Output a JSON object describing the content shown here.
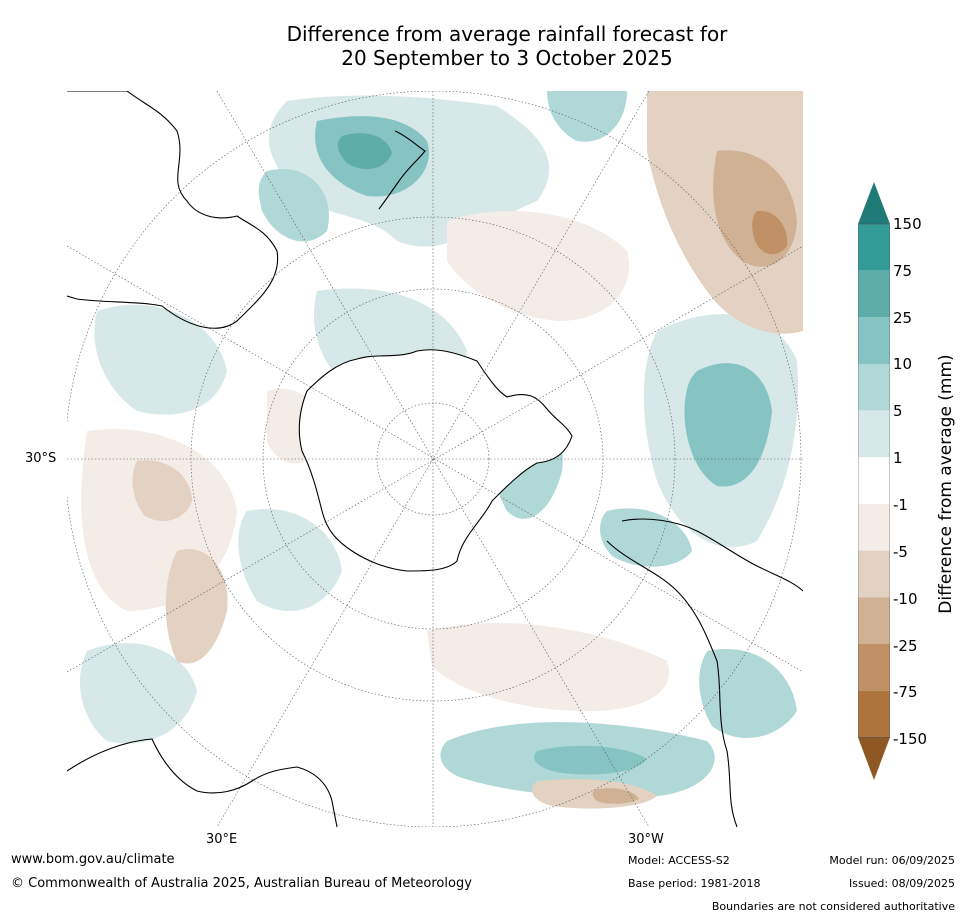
{
  "title_line1": "Difference from average rainfall forecast for",
  "title_line2": "20 September to 3 October 2025",
  "map": {
    "projection": "south-polar-stereographic",
    "lat_label": "30°S",
    "lon_labels": {
      "east": "30°E",
      "west": "30°W"
    },
    "legend_position": "right"
  },
  "colorbar": {
    "label": "Difference from average (mm)",
    "ticks": [
      "150",
      "75",
      "25",
      "10",
      "5",
      "1",
      "-1",
      "-5",
      "-10",
      "-25",
      "-75",
      "-150"
    ],
    "colors": {
      "above_150": "#1f7a78",
      "75_150": "#339c98",
      "25_75": "#5eadab",
      "10_25": "#85c4c2",
      "5_10": "#b0d8d7",
      "1_5": "#d6e9e8",
      "neutral": "#ffffff",
      "m5_m1": "#f3ece7",
      "m10_m5": "#e3d1c2",
      "m25_m10": "#d1b193",
      "m75_m25": "#c09166",
      "m150_m75": "#ad743e",
      "below_m150": "#8e5823"
    }
  },
  "footer": {
    "website": "www.bom.gov.au/climate",
    "copyright": "© Commonwealth of Australia 2025, Australian Bureau of Meteorology",
    "model": "Model: ACCESS-S2",
    "base_period": "Base period: 1981-2018",
    "model_run": "Model run: 06/09/2025",
    "issued": "Issued: 08/09/2025",
    "disclaimer": "Boundaries are not considered authoritative"
  }
}
